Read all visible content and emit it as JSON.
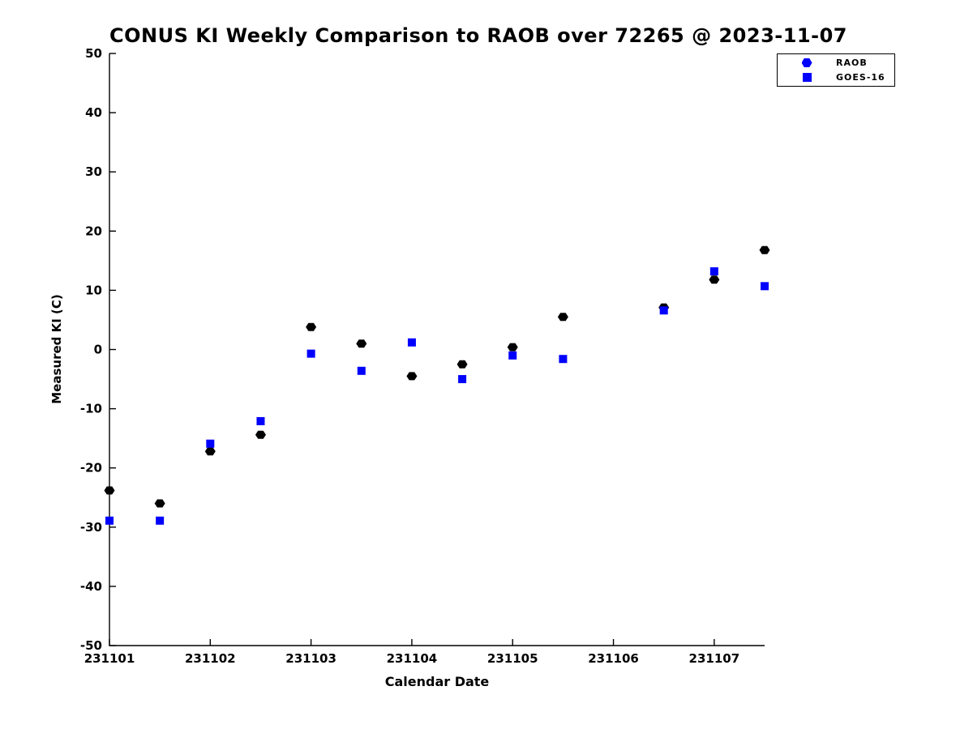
{
  "title": "CONUS KI Weekly Comparison to RAOB over 72265 @ 2023-11-07",
  "axes": {
    "x_label": "Calendar Date",
    "y_label": "Measured KI (C)"
  },
  "legend": {
    "position": "top-right",
    "items": [
      {
        "label": "RAOB",
        "marker": "hexagon",
        "color": "#0000ff"
      },
      {
        "label": "GOES-16",
        "marker": "square",
        "color": "#0000ff"
      }
    ]
  },
  "colors": {
    "background": "#ffffff",
    "axis": "#000000",
    "raob_points": "#000000",
    "goes16_points": "#0000ff"
  },
  "chart_data": {
    "type": "scatter",
    "title": "CONUS KI Weekly Comparison to RAOB over 72265 @ 2023-11-07",
    "xlabel": "Calendar Date",
    "ylabel": "Measured KI (C)",
    "xlim": [
      231101,
      231107.5
    ],
    "ylim": [
      -50,
      50
    ],
    "x_ticks": [
      231101,
      231102,
      231103,
      231104,
      231105,
      231106,
      231107
    ],
    "x_tick_labels": [
      "231101",
      "231102",
      "231103",
      "231104",
      "231105",
      "231106",
      "231107"
    ],
    "y_ticks": [
      -50,
      -40,
      -30,
      -20,
      -10,
      0,
      10,
      20,
      30,
      40,
      50
    ],
    "y_tick_labels": [
      "-50",
      "-40",
      "-30",
      "-20",
      "-10",
      "0",
      "10",
      "20",
      "30",
      "40",
      "50"
    ],
    "grid": false,
    "legend_position": "top-right",
    "series": [
      {
        "name": "RAOB",
        "marker": "hexagon",
        "color": "#000000",
        "points": [
          [
            231101.0,
            -23.8
          ],
          [
            231101.5,
            -26.0
          ],
          [
            231102.0,
            -17.2
          ],
          [
            231102.5,
            -14.4
          ],
          [
            231103.0,
            3.8
          ],
          [
            231103.5,
            1.0
          ],
          [
            231104.0,
            -4.5
          ],
          [
            231104.5,
            -2.5
          ],
          [
            231105.0,
            0.4
          ],
          [
            231105.5,
            5.5
          ],
          [
            231106.5,
            7.1
          ],
          [
            231107.0,
            11.8
          ],
          [
            231107.5,
            16.8
          ]
        ]
      },
      {
        "name": "GOES-16",
        "marker": "square",
        "color": "#0000ff",
        "points": [
          [
            231101.0,
            -28.9
          ],
          [
            231101.5,
            -28.9
          ],
          [
            231102.0,
            -15.9
          ],
          [
            231102.5,
            -12.1
          ],
          [
            231103.0,
            -0.7
          ],
          [
            231103.5,
            -3.6
          ],
          [
            231104.0,
            1.2
          ],
          [
            231104.5,
            -5.0
          ],
          [
            231105.0,
            -1.0
          ],
          [
            231105.5,
            -1.6
          ],
          [
            231106.5,
            6.6
          ],
          [
            231107.0,
            13.2
          ],
          [
            231107.5,
            10.7
          ]
        ]
      }
    ]
  }
}
